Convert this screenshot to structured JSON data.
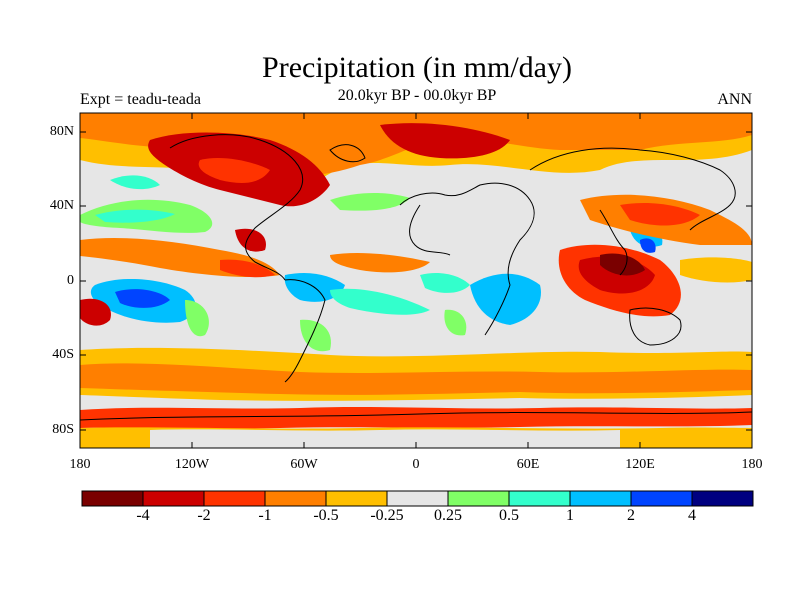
{
  "title": "Precipitation (in mm/day)",
  "subtitle_left": "Expt = teadu-teada",
  "subtitle_center": "20.0kyr BP - 00.0kyr BP",
  "subtitle_right": "ANN",
  "lat_labels": [
    "80N",
    "40N",
    "0",
    "40S",
    "80S"
  ],
  "lon_labels": [
    "180",
    "120W",
    "60W",
    "0",
    "60E",
    "120E",
    "180"
  ],
  "colorbar": {
    "colors": [
      "#7a0000",
      "#cc0000",
      "#ff3300",
      "#ff7f00",
      "#ffbf00",
      "#e6e6e6",
      "#80ff66",
      "#33ffcc",
      "#00bfff",
      "#0044ff",
      "#000080"
    ],
    "labels": [
      "-4",
      "-2",
      "-1",
      "-0.5",
      "-0.25",
      "0.25",
      "0.5",
      "1",
      "2",
      "4"
    ]
  }
}
